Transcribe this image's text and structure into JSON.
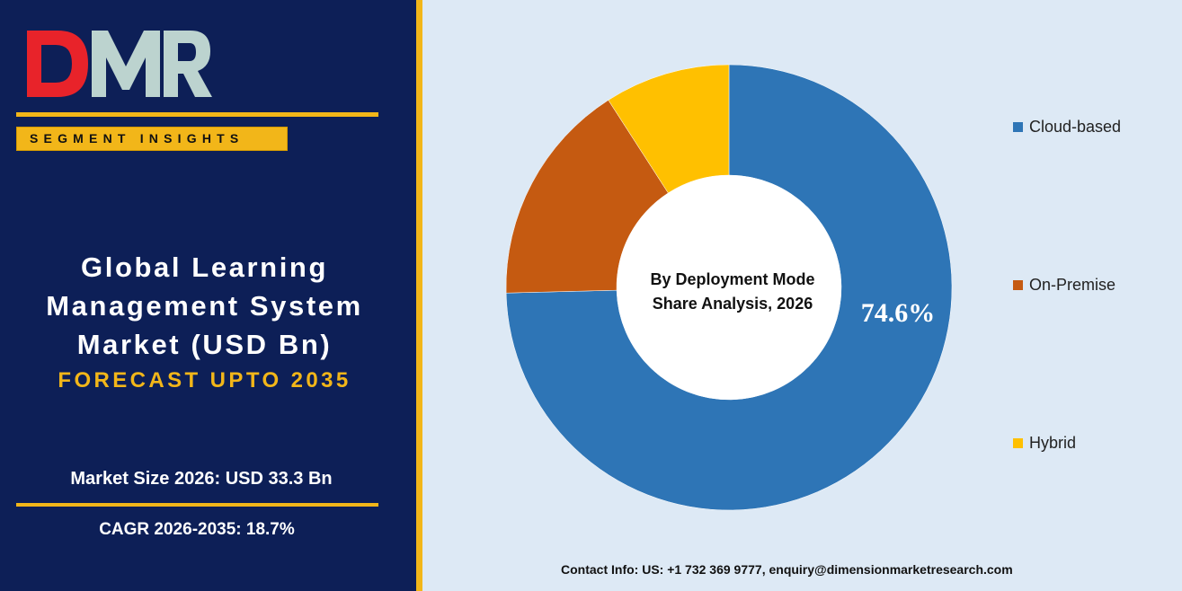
{
  "brand": {
    "logo_text": "DMR",
    "logo_colors": {
      "d": "#e8232a",
      "m": "#bcd3cf",
      "r": "#bcd3cf"
    }
  },
  "segment_label": "SEGMENT INSIGHTS",
  "title_lines": [
    "Global Learning",
    "Management System",
    "Market (USD Bn)"
  ],
  "forecast": "FORECAST UPTO 2035",
  "market_size": "Market Size 2026: USD 33.3 Bn",
  "cagr": "CAGR 2026-2035: 18.7%",
  "contact": "Contact Info: US: +1 732 369 9777, enquiry@dimensionmarketresearch.com",
  "colors": {
    "navy": "#0d1f57",
    "gold": "#f2b619",
    "background": "#dde9f5"
  },
  "chart_data": {
    "type": "pie",
    "donut": true,
    "center_label": [
      "By Deployment Mode",
      "Share Analysis, 2026"
    ],
    "categories": [
      "Cloud-based",
      "On-Premise",
      "Hybrid"
    ],
    "values": [
      74.6,
      16.3,
      9.1
    ],
    "colors": [
      "#2e75b6",
      "#c55a11",
      "#ffc000"
    ],
    "data_labels": [
      "74.6%",
      "",
      ""
    ],
    "legend_position": "right"
  }
}
